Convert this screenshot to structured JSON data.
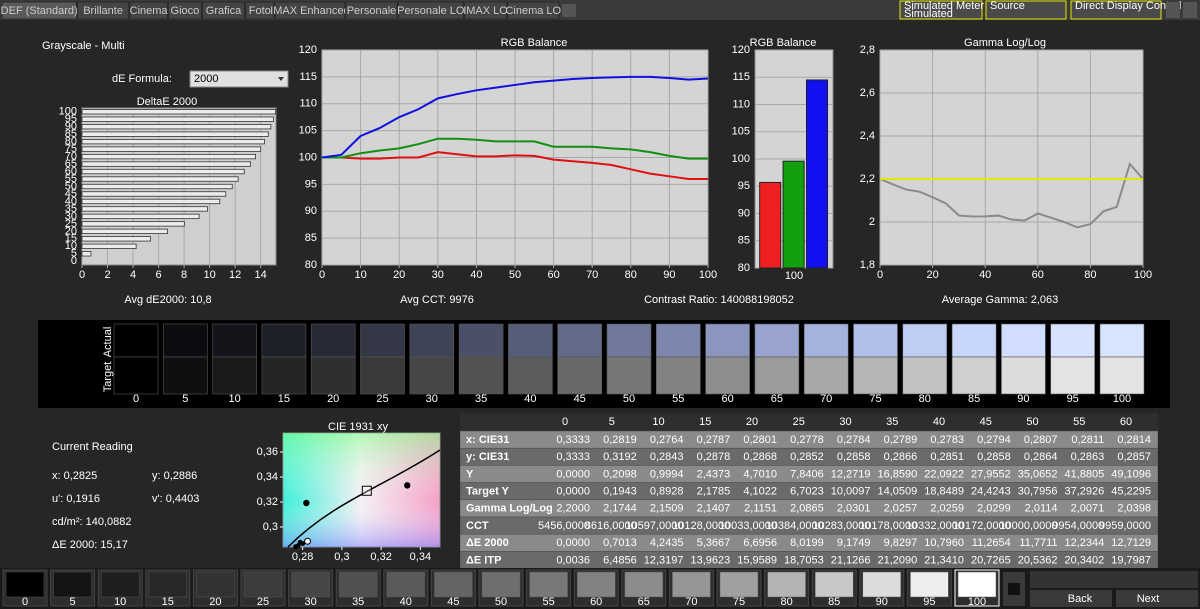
{
  "tabs": [
    "DEF (Standard)",
    "Brillante",
    "Cinema",
    "Gioco",
    "Grafica",
    "Foto",
    "IMAX Enhanced",
    "Personale",
    "Personale LO",
    "IMAX LO",
    "Cinema LO"
  ],
  "toolbar": {
    "meter": [
      "Simulated Meter",
      "Simulated"
    ],
    "source": "Source",
    "display": "Direct Display Control"
  },
  "header": {
    "title": "Grayscale - Multi",
    "formula_label": "dE Formula:",
    "formula_value": "2000"
  },
  "chart_data": [
    {
      "type": "barh",
      "title": "DeltaE 2000",
      "categories": [
        0,
        5,
        10,
        15,
        20,
        25,
        30,
        35,
        40,
        45,
        50,
        55,
        60,
        65,
        70,
        75,
        80,
        85,
        90,
        95,
        100
      ],
      "values": [
        0,
        0.7013,
        4.2435,
        5.3667,
        6.6956,
        8.0199,
        9.1749,
        9.8297,
        10.796,
        11.2654,
        11.7711,
        12.2344,
        12.7129,
        13.2,
        13.6,
        14.0,
        14.3,
        14.6,
        14.8,
        15.0,
        15.17
      ],
      "color": "#ececec",
      "xlim": [
        0,
        15.2
      ],
      "xticks": [
        0,
        2,
        4,
        6,
        8,
        10,
        12,
        14
      ],
      "grid": true
    },
    {
      "type": "line",
      "title": "RGB Balance",
      "x": [
        0,
        5,
        10,
        15,
        20,
        25,
        30,
        35,
        40,
        45,
        50,
        55,
        60,
        65,
        70,
        75,
        80,
        85,
        90,
        95,
        100
      ],
      "series": [
        {
          "color": "#e01010",
          "values": [
            100,
            100,
            99.8,
            99.8,
            100,
            100,
            101,
            100.6,
            100.2,
            100.2,
            100.4,
            100.3,
            99.6,
            99.3,
            99,
            98.6,
            97.8,
            97,
            96.5,
            96,
            96
          ]
        },
        {
          "color": "#109010",
          "values": [
            100,
            100,
            100.8,
            101.3,
            101.7,
            102.5,
            103.5,
            103.5,
            103.3,
            103,
            103,
            103,
            102,
            102,
            102,
            101.7,
            101.5,
            101,
            100.3,
            99.8,
            99.8
          ]
        },
        {
          "color": "#1010e0",
          "values": [
            100,
            100.5,
            104,
            105.5,
            107.5,
            109,
            111,
            111.8,
            112.5,
            113,
            113.5,
            114,
            114.3,
            114.6,
            114.8,
            114.9,
            115,
            115,
            114.8,
            114.5,
            114.7
          ]
        }
      ],
      "xlim": [
        0,
        100
      ],
      "xticks": [
        0,
        10,
        20,
        30,
        40,
        50,
        60,
        70,
        80,
        90,
        100
      ],
      "ylim": [
        80,
        120
      ],
      "yticks": [
        80,
        85,
        90,
        95,
        100,
        105,
        110,
        115,
        120
      ],
      "grid": true
    },
    {
      "type": "bar",
      "title": "RGB Balance",
      "categories": [
        100
      ],
      "series": [
        {
          "color": "#f02020",
          "values": [
            95.7
          ]
        },
        {
          "color": "#10a010",
          "values": [
            99.6
          ]
        },
        {
          "color": "#1010f0",
          "values": [
            114.5
          ]
        }
      ],
      "ylim": [
        80,
        120
      ],
      "yticks": [
        80,
        85,
        90,
        95,
        100,
        105,
        110,
        115,
        120
      ],
      "grid": true
    },
    {
      "type": "line",
      "title": "Gamma Log/Log",
      "x": [
        0,
        5,
        10,
        15,
        20,
        25,
        30,
        35,
        40,
        45,
        50,
        55,
        60,
        65,
        70,
        75,
        80,
        85,
        90,
        95,
        100
      ],
      "series": [
        {
          "color": "#8a8a8a",
          "values": [
            2.2,
            2.1744,
            2.1509,
            2.1407,
            2.1151,
            2.0865,
            2.0301,
            2.0257,
            2.0259,
            2.0299,
            2.0114,
            2.0071,
            2.0398,
            2.02,
            2.0,
            1.975,
            1.99,
            2.05,
            2.07,
            2.27,
            2.2
          ]
        },
        {
          "color": "#e6e600",
          "values": [
            2.2,
            2.2,
            2.2,
            2.2,
            2.2,
            2.2,
            2.2,
            2.2,
            2.2,
            2.2,
            2.2,
            2.2,
            2.2,
            2.2,
            2.2,
            2.2,
            2.2,
            2.2,
            2.2,
            2.2,
            2.2
          ]
        }
      ],
      "xlim": [
        0,
        100
      ],
      "xticks": [
        0,
        20,
        40,
        60,
        80,
        100
      ],
      "ylim": [
        1.8,
        2.8
      ],
      "yticks": [
        {
          "value": 1.8,
          "label": "1,8"
        },
        2,
        {
          "value": 2.2,
          "label": "2,2"
        },
        {
          "value": 2.4,
          "label": "2,4"
        },
        {
          "value": 2.6,
          "label": "2,6"
        },
        {
          "value": 2.8,
          "label": "2,8"
        }
      ],
      "grid": true
    },
    {
      "type": "scatter",
      "title": "CIE 1931 xy",
      "xlim": [
        0.27,
        0.35
      ],
      "ylim": [
        0.284,
        0.3752
      ],
      "xticks": [
        {
          "value": 0.28,
          "label": "0,28"
        },
        {
          "value": 0.3,
          "label": "0,3"
        },
        {
          "value": 0.32,
          "label": "0,32"
        },
        {
          "value": 0.34,
          "label": "0,34"
        }
      ],
      "yticks": [
        {
          "value": 0.3,
          "label": "0,3"
        },
        {
          "value": 0.32,
          "label": "0,32"
        },
        {
          "value": 0.34,
          "label": "0,34"
        },
        {
          "value": 0.36,
          "label": "0,36"
        }
      ],
      "points": {
        "x": [
          0.3333,
          0.2819,
          0.2764,
          0.2787,
          0.2801,
          0.2778
        ],
        "y": [
          0.3333,
          0.3192,
          0.2843,
          0.2878,
          0.2868,
          0.2852
        ]
      },
      "current": {
        "x": 0.2825,
        "y": 0.2886
      },
      "target": {
        "x": 0.3127,
        "y": 0.329
      },
      "grid": false
    }
  ],
  "summary": [
    "Avg dE2000: 10,8",
    "Avg CCT: 9976",
    "Contrast Ratio: 140088198052",
    "Average Gamma: 2,063"
  ],
  "swatches": {
    "row_labels": [
      "Actual",
      "Target"
    ],
    "levels": [
      0,
      5,
      10,
      15,
      20,
      25,
      30,
      35,
      40,
      45,
      50,
      55,
      60,
      65,
      70,
      75,
      80,
      85,
      90,
      95,
      100
    ],
    "actual_colors": [
      "#000000",
      "#0c0c10",
      "#14151b",
      "#1e2029",
      "#272a36",
      "#333746",
      "#3e4356",
      "#4a5067",
      "#565d78",
      "#636b8a",
      "#70799c",
      "#7d87ad",
      "#8a96bf",
      "#98a4cf",
      "#a5b2de",
      "#b2bfea",
      "#bfcdf5",
      "#c9d6fb",
      "#d0ddff",
      "#d6e2ff",
      "#d8e3ff"
    ],
    "target_colors": [
      "#000000",
      "#0f0f0f",
      "#1a1a1a",
      "#242424",
      "#2f2f2f",
      "#3a3a3a",
      "#464646",
      "#525252",
      "#5d5d5d",
      "#696969",
      "#767676",
      "#828282",
      "#8e8e8e",
      "#9b9b9b",
      "#a8a8a8",
      "#b5b5b5",
      "#c2c2c2",
      "#cfcfcf",
      "#dcdcdc",
      "#e3e3e3",
      "#e3e3e3"
    ]
  },
  "reading": {
    "title": "Current Reading",
    "lines": [
      "x: 0,2825",
      "y: 0,2886",
      "u': 0,1916",
      "v': 0,4403",
      "cd/m²: 140,0882",
      "ΔE 2000: 15,17"
    ]
  },
  "table": {
    "columns": [
      0,
      5,
      10,
      15,
      20,
      25,
      30,
      35,
      40,
      45,
      50,
      55,
      60
    ],
    "rows": [
      {
        "label": "x: CIE31",
        "cells": [
          "0,3333",
          "0,2819",
          "0,2764",
          "0,2787",
          "0,2801",
          "0,2778",
          "0,2784",
          "0,2789",
          "0,2783",
          "0,2794",
          "0,2807",
          "0,2811",
          "0,2814"
        ]
      },
      {
        "label": "y: CIE31",
        "cells": [
          "0,3333",
          "0,3192",
          "0,2843",
          "0,2878",
          "0,2868",
          "0,2852",
          "0,2858",
          "0,2866",
          "0,2851",
          "0,2858",
          "0,2864",
          "0,2863",
          "0,2857"
        ]
      },
      {
        "label": "Y",
        "cells": [
          "0,0000",
          "0,2098",
          "0,9994",
          "2,4373",
          "4,7010",
          "7,8406",
          "12,2719",
          "16,8590",
          "22,0922",
          "27,9552",
          "35,0652",
          "41,8805",
          "49,1096"
        ]
      },
      {
        "label": "Target Y",
        "cells": [
          "0,0000",
          "0,1943",
          "0,8928",
          "2,1785",
          "4,1022",
          "6,7023",
          "10,0097",
          "14,0509",
          "18,8489",
          "24,4243",
          "30,7956",
          "37,2926",
          "45,2295"
        ]
      },
      {
        "label": "Gamma Log/Log",
        "cells": [
          "2,2000",
          "2,1744",
          "2,1509",
          "2,1407",
          "2,1151",
          "2,0865",
          "2,0301",
          "2,0257",
          "2,0259",
          "2,0299",
          "2,0114",
          "2,0071",
          "2,0398"
        ]
      },
      {
        "label": "CCT",
        "cells": [
          "5456,0000",
          "8616,0000",
          "10597,0000",
          "10128,0000",
          "10033,0000",
          "10384,0000",
          "10283,0000",
          "10178,0000",
          "10332,0000",
          "10172,0000",
          "10000,0000",
          "9954,0000",
          "9959,0000"
        ]
      },
      {
        "label": "ΔE 2000",
        "cells": [
          "0,0000",
          "0,7013",
          "4,2435",
          "5,3667",
          "6,6956",
          "8,0199",
          "9,1749",
          "9,8297",
          "10,7960",
          "11,2654",
          "11,7711",
          "12,2344",
          "12,7129"
        ]
      },
      {
        "label": "ΔE ITP",
        "cells": [
          "0,0036",
          "6,4856",
          "12,3197",
          "13,9623",
          "15,9589",
          "18,7053",
          "21,1266",
          "21,2090",
          "21,3410",
          "20,7265",
          "20,5362",
          "20,3402",
          "19,7987"
        ]
      }
    ]
  },
  "footer": {
    "levels": [
      0,
      5,
      10,
      15,
      20,
      25,
      30,
      35,
      40,
      45,
      50,
      55,
      60,
      65,
      70,
      75,
      80,
      85,
      90,
      95,
      100
    ],
    "colors": [
      "#000000",
      "#141414",
      "#1e1e1e",
      "#282828",
      "#323232",
      "#3c3c3c",
      "#464646",
      "#505050",
      "#5a5a5a",
      "#646464",
      "#6e6e6e",
      "#787878",
      "#828282",
      "#8c8c8c",
      "#969696",
      "#a0a0a0",
      "#b4b4b4",
      "#c8c8c8",
      "#dcdcdc",
      "#eeeeee",
      "#ffffff"
    ],
    "selected": 100,
    "buttons": [
      "Back",
      "Next"
    ]
  }
}
